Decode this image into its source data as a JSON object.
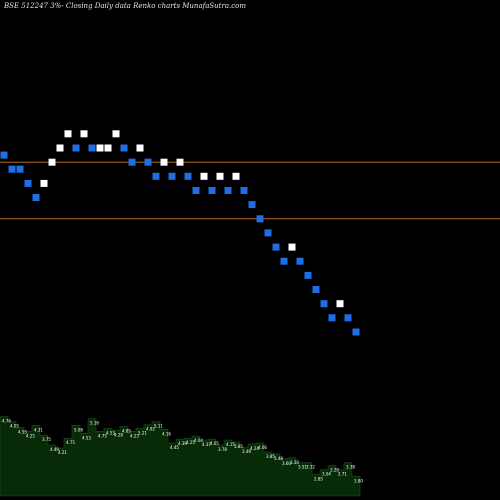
{
  "header": {
    "title": "BSE 512247 3%-   Closing Daily data  Renko  charts MunafaSutra.com"
  },
  "colors": {
    "background": "#000000",
    "up_brick": "#ffffff",
    "down_brick": "#1e6fe6",
    "reference_line": "#b5651d",
    "volume_fill": "#072b07",
    "volume_stroke": "#1a4d1a"
  },
  "chart_data": {
    "type": "renko",
    "brick_size": "3%",
    "price_ylim": [
      6.5,
      19.5
    ],
    "reference_lines": [
      15.2,
      13.6
    ],
    "bricks": [
      {
        "d": "down",
        "v": 15.4
      },
      {
        "d": "down",
        "v": 15.0
      },
      {
        "d": "down",
        "v": 15.0
      },
      {
        "d": "down",
        "v": 14.6
      },
      {
        "d": "down",
        "v": 14.2
      },
      {
        "d": "up",
        "v": 14.6
      },
      {
        "d": "up",
        "v": 15.2
      },
      {
        "d": "up",
        "v": 15.6
      },
      {
        "d": "up",
        "v": 16.0
      },
      {
        "d": "down",
        "v": 15.6
      },
      {
        "d": "up",
        "v": 16.0
      },
      {
        "d": "down",
        "v": 15.6
      },
      {
        "d": "up",
        "v": 15.6
      },
      {
        "d": "up",
        "v": 15.6
      },
      {
        "d": "up",
        "v": 16.0
      },
      {
        "d": "down",
        "v": 15.6
      },
      {
        "d": "down",
        "v": 15.2
      },
      {
        "d": "up",
        "v": 15.6
      },
      {
        "d": "down",
        "v": 15.2
      },
      {
        "d": "down",
        "v": 14.8
      },
      {
        "d": "up",
        "v": 15.2
      },
      {
        "d": "down",
        "v": 14.8
      },
      {
        "d": "up",
        "v": 15.2
      },
      {
        "d": "down",
        "v": 14.8
      },
      {
        "d": "down",
        "v": 14.4
      },
      {
        "d": "up",
        "v": 14.8
      },
      {
        "d": "down",
        "v": 14.4
      },
      {
        "d": "up",
        "v": 14.8
      },
      {
        "d": "down",
        "v": 14.4
      },
      {
        "d": "up",
        "v": 14.8
      },
      {
        "d": "down",
        "v": 14.4
      },
      {
        "d": "down",
        "v": 14.0
      },
      {
        "d": "down",
        "v": 13.6
      },
      {
        "d": "down",
        "v": 13.2
      },
      {
        "d": "down",
        "v": 12.8
      },
      {
        "d": "down",
        "v": 12.4
      },
      {
        "d": "up",
        "v": 12.8
      },
      {
        "d": "down",
        "v": 12.4
      },
      {
        "d": "down",
        "v": 12.0
      },
      {
        "d": "down",
        "v": 11.6
      },
      {
        "d": "down",
        "v": 11.2
      },
      {
        "d": "down",
        "v": 10.8
      },
      {
        "d": "up",
        "v": 11.2
      },
      {
        "d": "down",
        "v": 10.8
      },
      {
        "d": "down",
        "v": 10.4
      }
    ],
    "volume": {
      "ylim": [
        0,
        10
      ],
      "values": [
        8.1,
        7.6,
        7.0,
        6.6,
        7.2,
        6.2,
        5.2,
        4.9,
        5.9,
        7.2,
        6.4,
        7.9,
        6.6,
        6.9,
        6.7,
        7.1,
        6.6,
        6.9,
        7.3,
        7.6,
        6.8,
        5.4,
        5.8,
        5.9,
        6.1,
        5.7,
        5.8,
        5.2,
        5.7,
        5.5,
        5.0,
        5.3,
        5.4,
        4.5,
        4.3,
        3.8,
        3.9,
        3.4,
        3.4,
        2.2,
        2.7,
        3.1,
        2.7,
        3.4,
        2.0
      ],
      "labels": [
        "4.76",
        "4.05",
        "4.55",
        "4.25",
        "4.31",
        "3.75",
        "4.49",
        "4.21",
        "4.75",
        "5.08",
        "4.53",
        "5.16",
        "4.75",
        "4.53",
        "4.28",
        "4.85",
        "4.23",
        "5.21",
        "4.92",
        "5.11",
        "4.16",
        "4.45",
        "4.39",
        "4.25",
        "4.04",
        "4.37",
        "4.05",
        "3.78",
        "4.15",
        "3.85",
        "3.49",
        "4.24",
        "4.06",
        "3.85",
        "3.48",
        "3.60",
        "3.30",
        "3.51",
        "3.32",
        "2.85",
        "3.04",
        "3.20",
        "2.71",
        "3.38",
        "3.80"
      ]
    }
  }
}
